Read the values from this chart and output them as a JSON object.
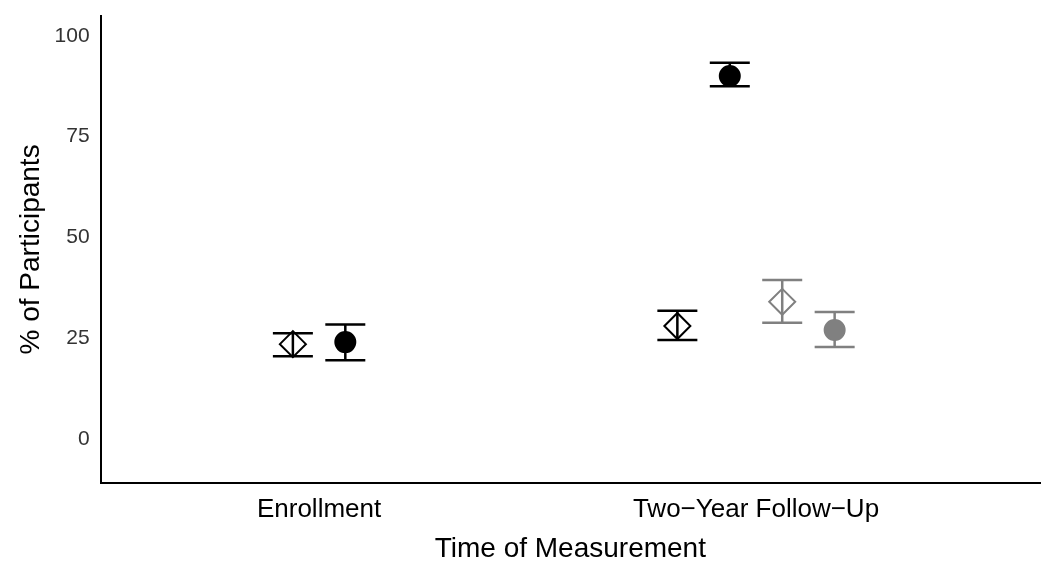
{
  "chart_data": {
    "type": "scatter",
    "xlabel": "Time of Measurement",
    "ylabel": "% of Participants",
    "categories": [
      "Enrollment",
      "Two−Year Follow−Up"
    ],
    "ylim": [
      -11,
      105
    ],
    "yticks": [
      0,
      25,
      50,
      75,
      100
    ],
    "grid": false,
    "legend": false,
    "series": [
      {
        "color": "#000000",
        "marker": "diamond",
        "values": [
          23.5,
          28
        ],
        "errors": [
          [
            20.5,
            26.2
          ],
          [
            24.5,
            31.8
          ]
        ]
      },
      {
        "color": "#000000",
        "marker": "circle",
        "values": [
          24,
          90
        ],
        "errors": [
          [
            19.5,
            28.4
          ],
          [
            87.5,
            93.3
          ]
        ]
      },
      {
        "color": "#808080",
        "marker": "diamond",
        "values": [
          null,
          34
        ],
        "errors": [
          null,
          [
            28.8,
            39.4
          ]
        ]
      },
      {
        "color": "#808080",
        "marker": "circle",
        "values": [
          null,
          27
        ],
        "errors": [
          null,
          [
            22.8,
            31.5
          ]
        ]
      }
    ]
  }
}
